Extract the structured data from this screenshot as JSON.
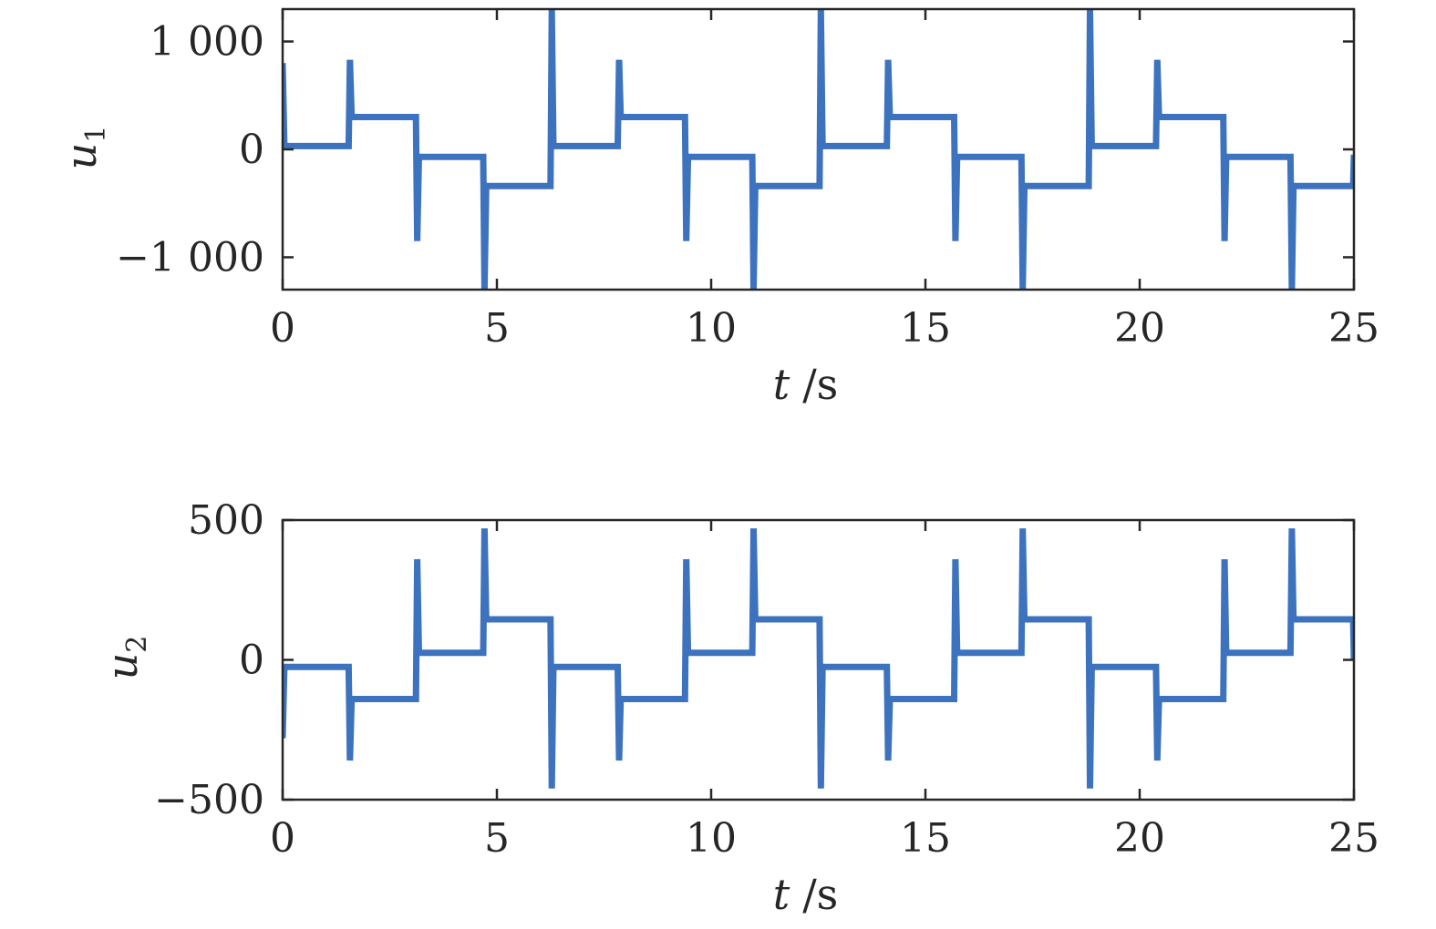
{
  "chart_data": [
    {
      "type": "line",
      "ylabel": "u",
      "ylabel_sub": "1",
      "xlabel_var": "t",
      "xlabel_unit": "/s",
      "xlim": [
        0,
        25
      ],
      "ylim": [
        -1300,
        1300
      ],
      "xticks": [
        0,
        5,
        10,
        15,
        20,
        25
      ],
      "xtick_labels": [
        "0",
        "5",
        "10",
        "15",
        "20",
        "25"
      ],
      "yticks": [
        1000,
        0,
        -1000
      ],
      "ytick_labels": [
        "1 000",
        "0",
        "−1 000"
      ],
      "grid": false,
      "color": "#3d72be",
      "period": 6.28,
      "levels": [
        30,
        300,
        -70,
        -340
      ],
      "spikes_up": [
        830,
        1300,
        830,
        1300
      ],
      "spikes_down": [
        -1300,
        -850,
        -1300,
        -850
      ],
      "start_value": 800,
      "end_value": -50
    },
    {
      "type": "line",
      "ylabel": "u",
      "ylabel_sub": "2",
      "xlabel_var": "t",
      "xlabel_unit": "/s",
      "xlim": [
        0,
        25
      ],
      "ylim": [
        -500,
        500
      ],
      "xticks": [
        0,
        5,
        10,
        15,
        20,
        25
      ],
      "xtick_labels": [
        "0",
        "5",
        "10",
        "15",
        "20",
        "25"
      ],
      "yticks": [
        500,
        0,
        -500
      ],
      "ytick_labels": [
        "500",
        "0",
        "−500"
      ],
      "grid": false,
      "color": "#3d72be",
      "period": 6.28,
      "levels": [
        -25,
        -140,
        25,
        145
      ],
      "spikes_up": [
        470,
        360,
        470,
        360
      ],
      "spikes_down": [
        -360,
        -460,
        -360,
        -460
      ],
      "start_value": -280,
      "end_value": 0
    }
  ]
}
